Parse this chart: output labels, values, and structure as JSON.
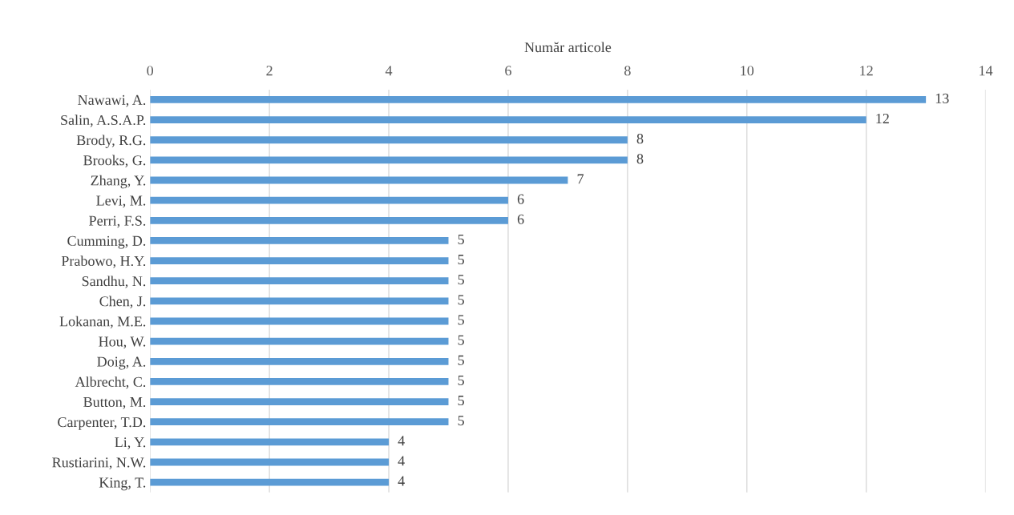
{
  "chart_data": {
    "type": "bar",
    "orientation": "horizontal",
    "xlabel": "Număr articole",
    "categories": [
      "Nawawi, A.",
      "Salin, A.S.A.P.",
      "Brody, R.G.",
      "Brooks, G.",
      "Zhang, Y.",
      "Levi, M.",
      "Perri, F.S.",
      "Cumming, D.",
      "Prabowo, H.Y.",
      "Sandhu, N.",
      "Chen, J.",
      "Lokanan, M.E.",
      "Hou, W.",
      "Doig, A.",
      "Albrecht, C.",
      "Button, M.",
      "Carpenter, T.D.",
      "Li, Y.",
      "Rustiarini, N.W.",
      "King, T."
    ],
    "values": [
      13,
      12,
      8,
      8,
      7,
      6,
      6,
      5,
      5,
      5,
      5,
      5,
      5,
      5,
      5,
      5,
      5,
      4,
      4,
      4
    ],
    "color": "#5b9bd5",
    "xlim": [
      0,
      14
    ],
    "xticks": [
      0,
      2,
      4,
      6,
      8,
      10,
      12,
      14
    ],
    "grid": "x",
    "data_labels": true,
    "legend": false
  }
}
